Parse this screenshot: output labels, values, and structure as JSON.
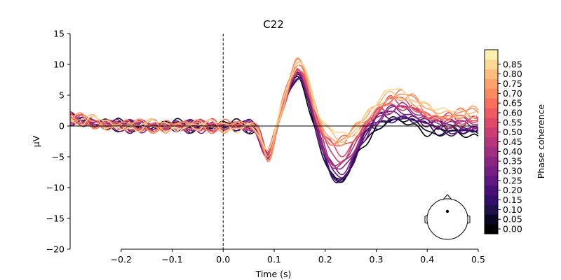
{
  "chart_data": {
    "type": "line",
    "title": "C22",
    "xlabel": "Time (s)",
    "ylabel": "µV",
    "xlim": [
      -0.3,
      0.5
    ],
    "ylim": [
      -20,
      15
    ],
    "xticks": [
      -0.2,
      -0.1,
      0.0,
      0.1,
      0.2,
      0.3,
      0.4,
      0.5
    ],
    "xtick_labels": [
      "−0.2",
      "−0.1",
      "0.0",
      "0.1",
      "0.2",
      "0.3",
      "0.4",
      "0.5"
    ],
    "yticks": [
      15,
      10,
      5,
      0,
      -5,
      -10,
      -15,
      -20
    ],
    "ytick_labels": [
      "15",
      "10",
      "5",
      "0",
      "−5",
      "−10",
      "−15",
      "−20"
    ],
    "event_line_x": 0.0,
    "zero_line_y": 0,
    "colorbar": {
      "label": "Phase coherence",
      "colormap": "magma",
      "ticks": [
        0.0,
        0.05,
        0.1,
        0.15,
        0.2,
        0.25,
        0.3,
        0.35,
        0.4,
        0.45,
        0.5,
        0.55,
        0.6,
        0.65,
        0.7,
        0.75,
        0.8,
        0.85
      ],
      "tick_labels": [
        "0.00",
        "0.05",
        "0.10",
        "0.15",
        "0.20",
        "0.25",
        "0.30",
        "0.35",
        "0.40",
        "0.45",
        "0.50",
        "0.55",
        "0.60",
        "0.65",
        "0.70",
        "0.75",
        "0.80",
        "0.85"
      ],
      "colors": [
        "#000004",
        "#0a0722",
        "#1e1048",
        "#330f6a",
        "#4a1079",
        "#5f187f",
        "#741f81",
        "#8a2583",
        "#a02f7f",
        "#b63679",
        "#cb3e72",
        "#de4968",
        "#ed5a5f",
        "#f6705c",
        "#fa8a61",
        "#fea26c",
        "#fdbd7f",
        "#fcd895",
        "#fcf0af"
      ]
    },
    "series_note": "18 ERP traces, one per coherence level",
    "series": [
      {
        "coherence": 0.0,
        "peak": 7.9,
        "trough": -9.3,
        "late": -1.9
      },
      {
        "coherence": 0.05,
        "peak": 8.0,
        "trough": -9.2,
        "late": -1.6
      },
      {
        "coherence": 0.1,
        "peak": 8.2,
        "trough": -9.0,
        "late": -1.3
      },
      {
        "coherence": 0.15,
        "peak": 8.3,
        "trough": -8.8,
        "late": -1.0
      },
      {
        "coherence": 0.2,
        "peak": 8.5,
        "trough": -8.6,
        "late": -0.7
      },
      {
        "coherence": 0.25,
        "peak": 8.6,
        "trough": -8.3,
        "late": -0.4
      },
      {
        "coherence": 0.3,
        "peak": 8.7,
        "trough": -7.9,
        "late": -0.1
      },
      {
        "coherence": 0.35,
        "peak": 8.8,
        "trough": -7.4,
        "late": 0.2
      },
      {
        "coherence": 0.4,
        "peak": 8.9,
        "trough": -6.8,
        "late": 0.5
      },
      {
        "coherence": 0.45,
        "peak": 9.0,
        "trough": -6.0,
        "late": 0.8
      },
      {
        "coherence": 0.5,
        "peak": 9.1,
        "trough": -5.2,
        "late": 1.1
      },
      {
        "coherence": 0.55,
        "peak": 9.3,
        "trough": -4.4,
        "late": 1.4
      },
      {
        "coherence": 0.6,
        "peak": 9.5,
        "trough": -3.7,
        "late": 1.7
      },
      {
        "coherence": 0.65,
        "peak": 9.8,
        "trough": -3.1,
        "late": 2.0
      },
      {
        "coherence": 0.7,
        "peak": 10.1,
        "trough": -2.6,
        "late": 2.3
      },
      {
        "coherence": 0.75,
        "peak": 10.4,
        "trough": -2.2,
        "late": 2.6
      },
      {
        "coherence": 0.8,
        "peak": 10.7,
        "trough": -1.8,
        "late": 2.9
      },
      {
        "coherence": 0.85,
        "peak": 10.9,
        "trough": -1.5,
        "late": 3.2
      }
    ]
  }
}
